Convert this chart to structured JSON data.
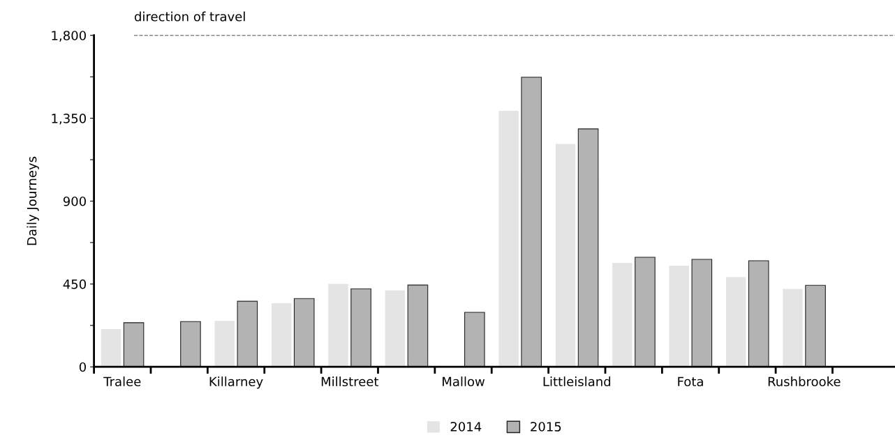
{
  "chart_data": {
    "type": "bar",
    "ylabel": "Daily Journeys",
    "categories": [
      "Tralee",
      null,
      "Killarney",
      null,
      "Millstreet",
      null,
      "Mallow",
      null,
      "Littleisland",
      null,
      "Fota",
      null,
      "Rushbrooke"
    ],
    "series": [
      {
        "name": "2014",
        "color": "#e4e4e4",
        "values": [
          205,
          null,
          250,
          345,
          450,
          415,
          null,
          1390,
          1210,
          565,
          550,
          487,
          423
        ]
      },
      {
        "name": "2015",
        "color": "#b3b3b3",
        "values": [
          240,
          246,
          356,
          371,
          424,
          444,
          296,
          1573,
          1292,
          595,
          584,
          576,
          443
        ]
      }
    ],
    "ylim": [
      0,
      1800
    ],
    "yticks": [
      0,
      {
        "value": 225,
        "label": null
      },
      {
        "value": 450,
        "label": "450"
      },
      {
        "value": 675,
        "label": null
      },
      {
        "value": 900,
        "label": "900"
      },
      {
        "value": 1125,
        "label": null
      },
      {
        "value": 1350,
        "label": "1,350"
      },
      {
        "value": 1575,
        "label": null
      },
      {
        "value": 1800,
        "label": "1,800"
      }
    ],
    "ref_lines": [
      {
        "axis": "y",
        "value": 1800,
        "label": "direction of travel",
        "color": "#888888",
        "line_style": "dashed"
      }
    ],
    "legend": "bottom",
    "grid": false
  }
}
